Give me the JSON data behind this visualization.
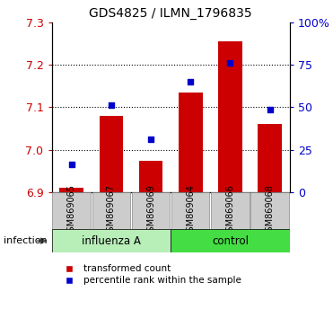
{
  "title": "GDS4825 / ILMN_1796835",
  "categories": [
    "GSM869065",
    "GSM869067",
    "GSM869069",
    "GSM869064",
    "GSM869066",
    "GSM869068"
  ],
  "group_labels": [
    "influenza A",
    "control"
  ],
  "group_colors": [
    "#B8EEB8",
    "#44DD44"
  ],
  "bar_values": [
    6.91,
    7.08,
    6.975,
    7.135,
    7.255,
    7.06
  ],
  "dot_values": [
    6.965,
    7.105,
    7.025,
    7.16,
    7.205,
    7.095
  ],
  "bar_color": "#CC0000",
  "dot_color": "#0000CC",
  "ylim_left": [
    6.9,
    7.3
  ],
  "ylim_right": [
    0,
    100
  ],
  "yticks_left": [
    6.9,
    7.0,
    7.1,
    7.2,
    7.3
  ],
  "yticks_right": [
    0,
    25,
    50,
    75,
    100
  ],
  "ytick_labels_right": [
    "0",
    "25",
    "50",
    "75",
    "100%"
  ],
  "infection_label": "infection",
  "legend_bar": "transformed count",
  "legend_dot": "percentile rank within the sample",
  "label_box_color": "#CCCCCC",
  "label_box_edge": "#888888",
  "grid_dotted_ticks": [
    7.0,
    7.1,
    7.2
  ]
}
